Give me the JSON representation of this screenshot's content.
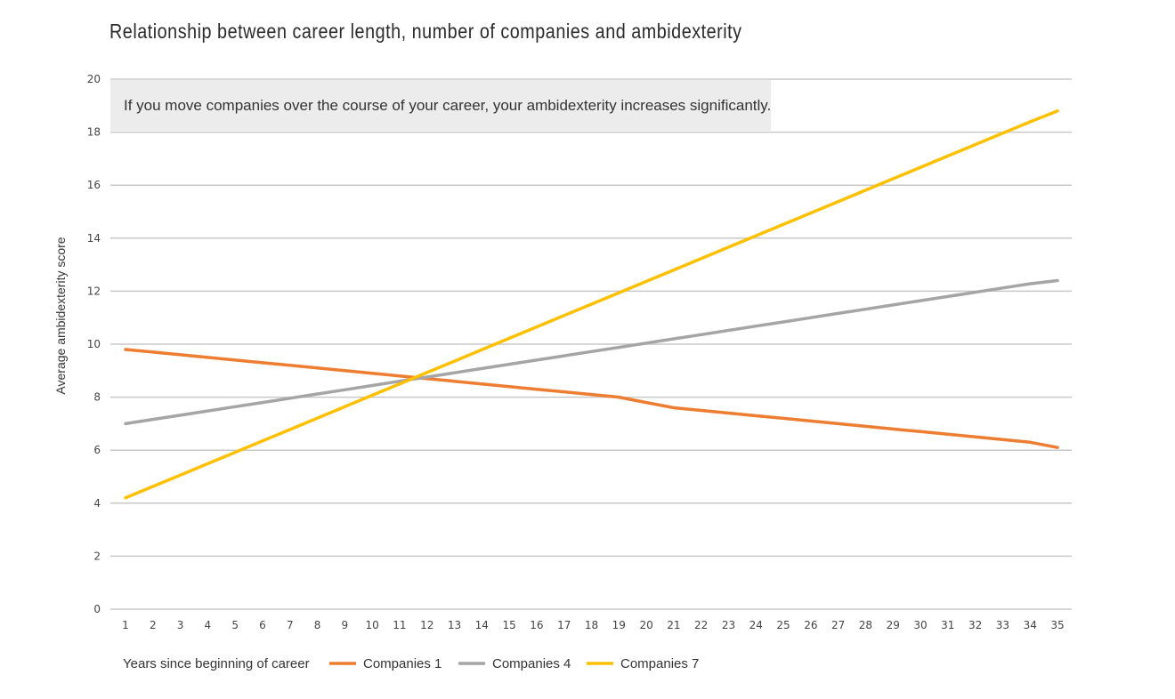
{
  "chart_data": {
    "type": "line",
    "title": "Relationship between career length, number of companies and ambidexterity",
    "annotation": "If you move companies over the course of your career, your ambidexterity increases significantly.",
    "xlabel": "Years since beginning of career",
    "ylabel": "Average ambidexterity score",
    "x": [
      1,
      2,
      3,
      4,
      5,
      6,
      7,
      8,
      9,
      10,
      11,
      12,
      13,
      14,
      15,
      16,
      17,
      18,
      19,
      20,
      21,
      22,
      23,
      24,
      25,
      26,
      27,
      28,
      29,
      30,
      31,
      32,
      33,
      34,
      35
    ],
    "ylim": [
      0,
      20
    ],
    "yticks": [
      0,
      2,
      4,
      6,
      8,
      10,
      12,
      14,
      16,
      18,
      20
    ],
    "grid": true,
    "legend_position": "bottom-left",
    "series": [
      {
        "name": "Companies 1",
        "color": "#ed7d31",
        "values": [
          9.8,
          9.7,
          9.6,
          9.5,
          9.4,
          9.3,
          9.2,
          9.1,
          9.0,
          8.9,
          8.8,
          8.7,
          8.6,
          8.5,
          8.4,
          8.3,
          8.2,
          8.1,
          8.0,
          7.8,
          7.6,
          7.5,
          7.4,
          7.3,
          7.2,
          7.1,
          7.0,
          6.9,
          6.8,
          6.7,
          6.6,
          6.5,
          6.4,
          6.3,
          6.1
        ]
      },
      {
        "name": "Companies 4",
        "color": "#a5a5a5",
        "values": [
          7.0,
          7.16,
          7.32,
          7.48,
          7.64,
          7.8,
          7.96,
          8.12,
          8.28,
          8.44,
          8.6,
          8.76,
          8.92,
          9.08,
          9.24,
          9.4,
          9.56,
          9.72,
          9.88,
          10.04,
          10.2,
          10.36,
          10.52,
          10.68,
          10.84,
          11.0,
          11.16,
          11.32,
          11.48,
          11.64,
          11.8,
          11.96,
          12.12,
          12.28,
          12.4
        ]
      },
      {
        "name": "Companies 7",
        "color": "#ffc000",
        "values": [
          4.2,
          4.63,
          5.06,
          5.49,
          5.92,
          6.35,
          6.78,
          7.21,
          7.64,
          8.07,
          8.5,
          8.93,
          9.36,
          9.79,
          10.22,
          10.65,
          11.08,
          11.51,
          11.94,
          12.37,
          12.8,
          13.23,
          13.66,
          14.09,
          14.52,
          14.95,
          15.38,
          15.81,
          16.24,
          16.67,
          17.1,
          17.53,
          17.96,
          18.39,
          18.8
        ]
      }
    ]
  }
}
